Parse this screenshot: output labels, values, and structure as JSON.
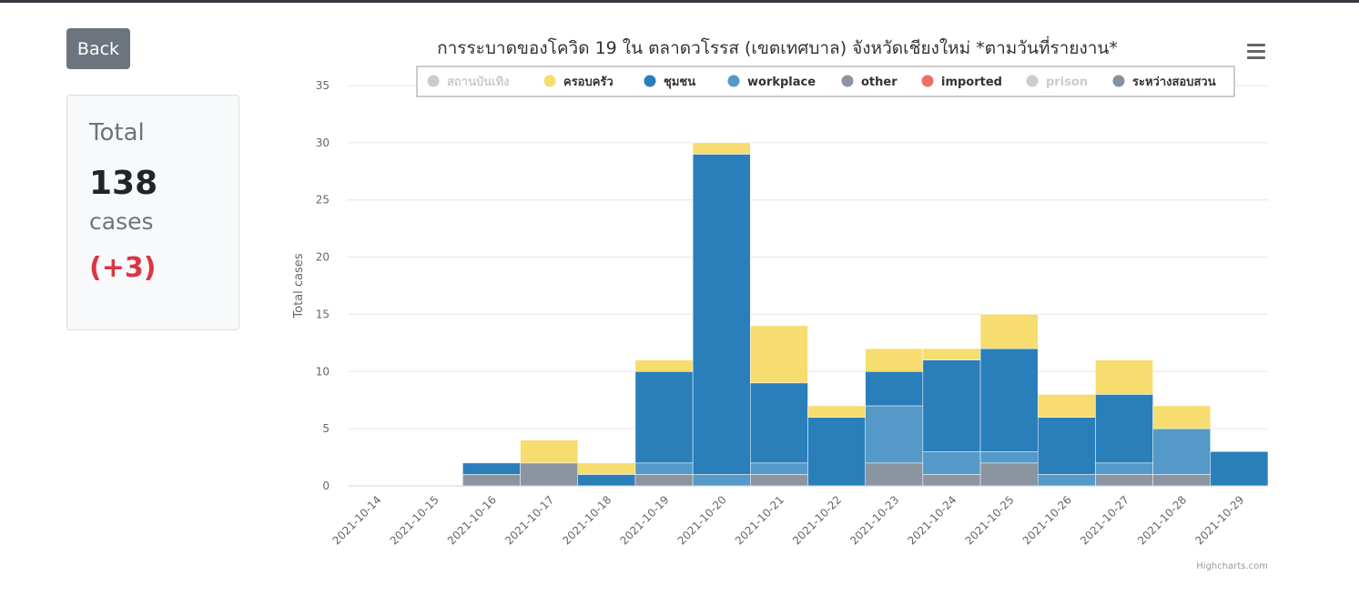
{
  "back_button": {
    "label": "Back"
  },
  "summary": {
    "label": "Total",
    "value": "138",
    "unit": "cases",
    "delta": "(+3)"
  },
  "chart_data": {
    "type": "bar",
    "stacked": true,
    "title": "การระบาดของโควิด 19 ใน ตลาดวโรรส (เขตเทศบาล) จังหวัดเชียงใหม่ *ตามวันที่รายงาน*",
    "xlabel": "",
    "ylabel": "Total cases",
    "ylim": [
      0,
      35
    ],
    "yticks": [
      0,
      5,
      10,
      15,
      20,
      25,
      30,
      35
    ],
    "grid": true,
    "legend_position": "top",
    "credit": "Highcharts.com",
    "categories": [
      "2021-10-14",
      "2021-10-15",
      "2021-10-16",
      "2021-10-17",
      "2021-10-18",
      "2021-10-19",
      "2021-10-20",
      "2021-10-21",
      "2021-10-22",
      "2021-10-23",
      "2021-10-24",
      "2021-10-25",
      "2021-10-26",
      "2021-10-27",
      "2021-10-28",
      "2021-10-29"
    ],
    "series": [
      {
        "name": "สถานบันเทิง",
        "color": "#cccccc",
        "hidden": true,
        "values": [
          0,
          0,
          0,
          0,
          0,
          0,
          0,
          0,
          0,
          0,
          0,
          0,
          0,
          0,
          0,
          0
        ]
      },
      {
        "name": "ครอบครัว",
        "color": "#f7dc6f",
        "hidden": false,
        "values": [
          0,
          0,
          0,
          2,
          1,
          1,
          1,
          5,
          1,
          2,
          1,
          3,
          2,
          3,
          2,
          0
        ]
      },
      {
        "name": "ชุมชน",
        "color": "#2a7fbb",
        "hidden": false,
        "values": [
          0,
          0,
          1,
          0,
          1,
          8,
          28,
          7,
          6,
          3,
          8,
          9,
          5,
          6,
          0,
          3
        ]
      },
      {
        "name": "workplace",
        "color": "#5499c7",
        "hidden": false,
        "values": [
          0,
          0,
          0,
          0,
          0,
          1,
          1,
          1,
          0,
          5,
          2,
          1,
          1,
          1,
          4,
          0
        ]
      },
      {
        "name": "other",
        "color": "#8a95a1",
        "hidden": false,
        "values": [
          0,
          0,
          1,
          2,
          0,
          1,
          0,
          1,
          0,
          2,
          1,
          2,
          0,
          1,
          1,
          0
        ]
      },
      {
        "name": "imported",
        "color": "#ec7063",
        "hidden": false,
        "values": [
          0,
          0,
          0,
          0,
          0,
          0,
          0,
          0,
          0,
          0,
          0,
          0,
          0,
          0,
          0,
          0
        ]
      },
      {
        "name": "prison",
        "color": "#cccccc",
        "hidden": true,
        "values": [
          0,
          0,
          0,
          0,
          0,
          0,
          0,
          0,
          0,
          0,
          0,
          0,
          0,
          0,
          0,
          0
        ]
      },
      {
        "name": "ระหว่างสอบสวน",
        "color": "#85929e",
        "hidden": false,
        "values": [
          0,
          0,
          0,
          0,
          0,
          0,
          0,
          0,
          0,
          0,
          0,
          0,
          0,
          0,
          0,
          0
        ]
      }
    ]
  }
}
